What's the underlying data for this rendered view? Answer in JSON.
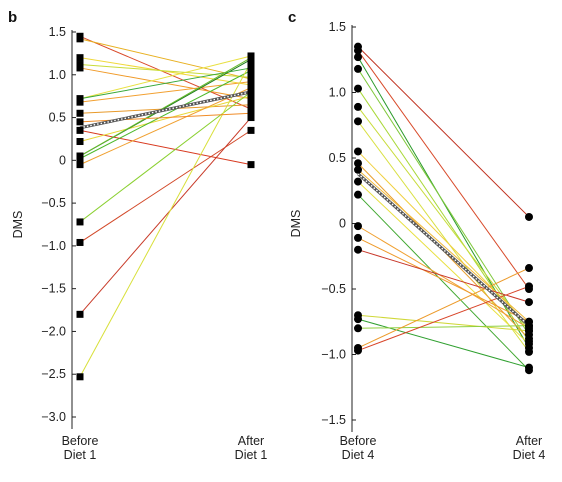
{
  "chart_data": [
    {
      "panel": "b",
      "type": "line",
      "ylabel": "DMS",
      "xlabel": "",
      "categories": [
        "Before\nDiet 1",
        "After\nDiet 1"
      ],
      "ylim": [
        -3.0,
        1.5
      ],
      "yticks": [
        1.5,
        1.0,
        0.5,
        0,
        -0.5,
        -1.0,
        -1.5,
        -2.0,
        -2.5,
        -3.0
      ],
      "ytick_labels": [
        "1.5",
        "1.0",
        "0.5",
        "0",
        "−0.5",
        "−1.0",
        "−1.5",
        "−2.0",
        "−2.5",
        "−3.0"
      ],
      "marker": "square",
      "mean_line": [
        0.38,
        0.8
      ],
      "pairs": [
        {
          "before": 1.45,
          "after": 0.6,
          "color": "#d94a2a"
        },
        {
          "before": 1.42,
          "after": 0.95,
          "color": "#e8b020"
        },
        {
          "before": 1.2,
          "after": 0.88,
          "color": "#f0d83a"
        },
        {
          "before": 1.12,
          "after": 0.97,
          "color": "#c9dc38"
        },
        {
          "before": 1.08,
          "after": 0.72,
          "color": "#f09a28"
        },
        {
          "before": 0.72,
          "after": 1.22,
          "color": "#e8e040"
        },
        {
          "before": 0.68,
          "after": 0.92,
          "color": "#f2a030"
        },
        {
          "before": 0.55,
          "after": 0.65,
          "color": "#e89a2a"
        },
        {
          "before": 0.35,
          "after": -0.05,
          "color": "#d83a20"
        },
        {
          "before": 0.22,
          "after": 0.75,
          "color": "#e8d838"
        },
        {
          "before": 0.05,
          "after": 1.18,
          "color": "#1e7a1e"
        },
        {
          "before": 0.02,
          "after": 1.05,
          "color": "#4cb82a"
        },
        {
          "before": -0.05,
          "after": 0.85,
          "color": "#f0a030"
        },
        {
          "before": -0.72,
          "after": 0.8,
          "color": "#8ad030"
        },
        {
          "before": -0.96,
          "after": 0.35,
          "color": "#d24828"
        },
        {
          "before": -1.8,
          "after": 0.5,
          "color": "#c83a28"
        },
        {
          "before": -2.53,
          "after": 1.15,
          "color": "#d8e03a"
        },
        {
          "before": 0.72,
          "after": 1.08,
          "color": "#38a83a"
        },
        {
          "before": 0.05,
          "after": 1.2,
          "color": "#66bb2a"
        },
        {
          "before": 0.45,
          "after": 0.55,
          "color": "#f08c28"
        }
      ]
    },
    {
      "panel": "c",
      "type": "line",
      "ylabel": "DMS",
      "xlabel": "",
      "categories": [
        "Before\nDiet 4",
        "After\nDiet 4"
      ],
      "ylim": [
        -1.5,
        1.5
      ],
      "yticks": [
        1.5,
        1.0,
        0.5,
        0,
        -0.5,
        -1.0,
        -1.5
      ],
      "ytick_labels": [
        "1.5",
        "1.0",
        "0.5",
        "0",
        "−0.5",
        "−1.0",
        "−1.5"
      ],
      "marker": "circle",
      "mean_line": [
        0.38,
        -0.78
      ],
      "pairs": [
        {
          "before": 1.35,
          "after": 0.05,
          "color": "#c0301e"
        },
        {
          "before": 1.32,
          "after": -0.5,
          "color": "#d84a2a"
        },
        {
          "before": 1.27,
          "after": -0.95,
          "color": "#2a9a2a"
        },
        {
          "before": 1.18,
          "after": -0.85,
          "color": "#7fc83a"
        },
        {
          "before": 1.03,
          "after": -0.9,
          "color": "#a8d838"
        },
        {
          "before": 0.89,
          "after": -0.82,
          "color": "#c8dc3a"
        },
        {
          "before": 0.78,
          "after": -0.98,
          "color": "#d8e040"
        },
        {
          "before": 0.55,
          "after": -0.78,
          "color": "#f0d040"
        },
        {
          "before": 0.46,
          "after": -0.88,
          "color": "#e8a030"
        },
        {
          "before": 0.41,
          "after": -0.75,
          "color": "#f0b838"
        },
        {
          "before": 0.32,
          "after": -0.92,
          "color": "#e8e040"
        },
        {
          "before": 0.22,
          "after": -1.12,
          "color": "#40a830"
        },
        {
          "before": -0.02,
          "after": -0.8,
          "color": "#f0a030"
        },
        {
          "before": -0.11,
          "after": -0.75,
          "color": "#ee9a2a"
        },
        {
          "before": -0.2,
          "after": -0.6,
          "color": "#c8382a"
        },
        {
          "before": -0.7,
          "after": -0.82,
          "color": "#d0d838"
        },
        {
          "before": -0.73,
          "after": -1.1,
          "color": "#30a030"
        },
        {
          "before": -0.8,
          "after": -0.78,
          "color": "#90d040"
        },
        {
          "before": -0.97,
          "after": -0.48,
          "color": "#d84428"
        },
        {
          "before": -0.95,
          "after": -0.34,
          "color": "#ec9a2a"
        }
      ]
    }
  ]
}
